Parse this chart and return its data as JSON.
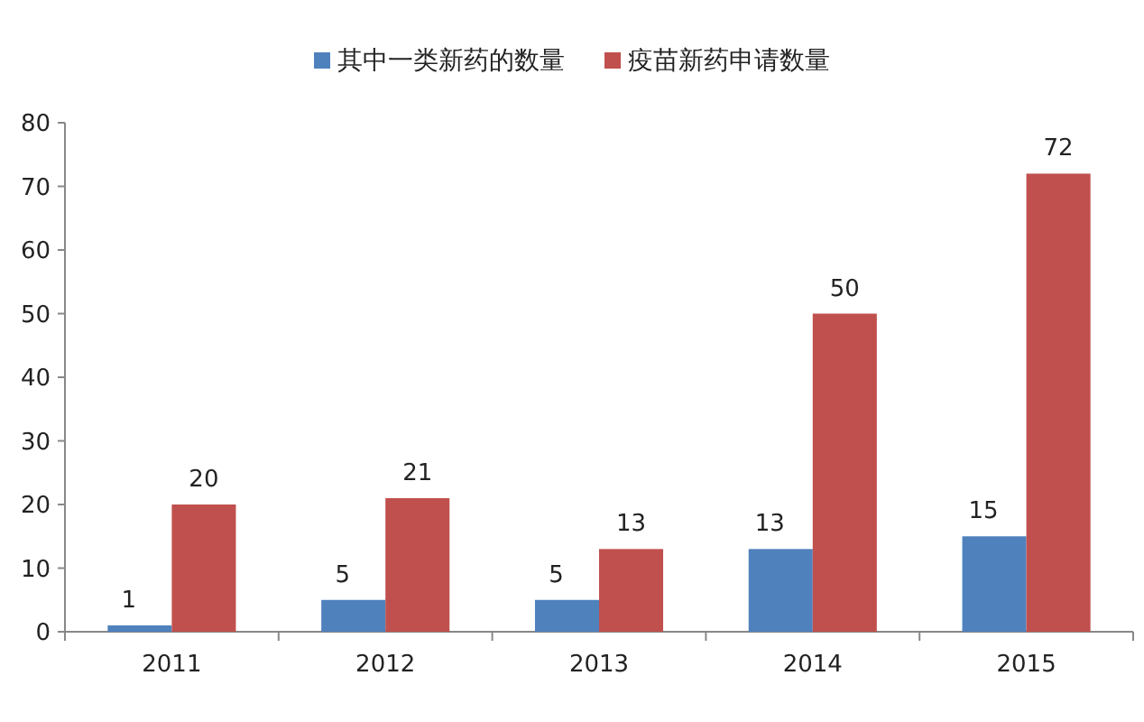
{
  "chart_data": {
    "type": "bar",
    "categories": [
      "2011",
      "2012",
      "2013",
      "2014",
      "2015"
    ],
    "series": [
      {
        "name": "其中一类新药的数量",
        "color": "#4f81bd",
        "values": [
          1,
          5,
          5,
          13,
          15
        ]
      },
      {
        "name": "疫苗新药申请数量",
        "color": "#c0504d",
        "values": [
          20,
          21,
          13,
          50,
          72
        ]
      }
    ],
    "ylim": [
      0,
      80
    ],
    "yticks": [
      0,
      10,
      20,
      30,
      40,
      50,
      60,
      70,
      80
    ],
    "data_labels": true,
    "legend": "top",
    "grid": false
  }
}
